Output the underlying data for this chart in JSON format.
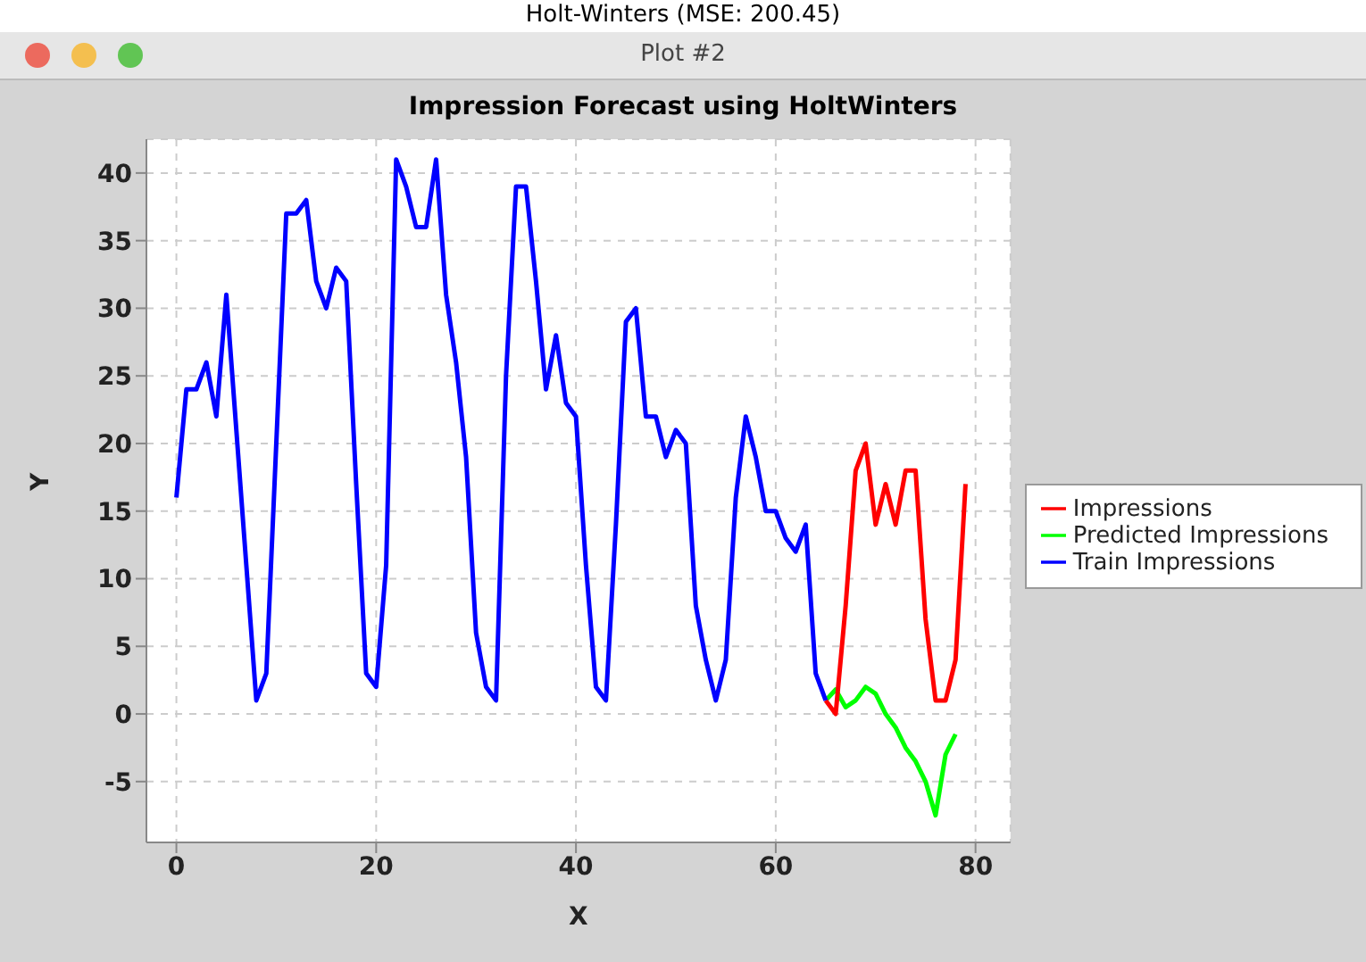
{
  "chart_data": {
    "type": "line",
    "title": "Impression Forecast using HoltWinters",
    "xlabel": "X",
    "ylabel": "Y",
    "annotations": [
      "Holt-Winters (MSE: 200.45)",
      "Plot #2"
    ],
    "xlim": [
      -3,
      83.5
    ],
    "xticks": [
      0,
      20,
      40,
      60,
      80
    ],
    "ylim": [
      -9.5,
      42.5
    ],
    "yticks": [
      -5,
      0,
      5,
      10,
      15,
      20,
      25,
      30,
      35,
      40
    ],
    "grid": true,
    "legend": "right",
    "marker": "none",
    "line_style": "solid",
    "series": [
      {
        "name": "Predicted Impressions",
        "color": "#00ff00",
        "x": [
          65,
          66,
          67,
          68,
          69,
          70,
          71,
          72,
          73,
          74,
          75,
          76,
          77,
          78
        ],
        "values": [
          1,
          1.8,
          0.5,
          1,
          2,
          1.5,
          0,
          -1,
          -2.5,
          -3.5,
          -5,
          -7.5,
          -3,
          -1.5
        ]
      },
      {
        "name": "Impressions",
        "color": "#ff0000",
        "x": [
          65,
          66,
          67,
          68,
          69,
          70,
          71,
          72,
          73,
          74,
          75,
          76,
          77,
          78,
          79
        ],
        "values": [
          1,
          0,
          8,
          18,
          20,
          14,
          17,
          14,
          18,
          18,
          7,
          1,
          1,
          4,
          17
        ]
      },
      {
        "name": "Train Impressions",
        "color": "#0000ff",
        "x": [
          0,
          1,
          2,
          3,
          4,
          5,
          6,
          7,
          8,
          9,
          10,
          11,
          12,
          13,
          14,
          15,
          16,
          17,
          18,
          19,
          20,
          21,
          22,
          23,
          24,
          25,
          26,
          27,
          28,
          29,
          30,
          31,
          32,
          33,
          34,
          35,
          36,
          37,
          38,
          39,
          40,
          41,
          42,
          43,
          44,
          45,
          46,
          47,
          48,
          49,
          50,
          51,
          52,
          53,
          54,
          55,
          56,
          57,
          58,
          59,
          60,
          61,
          62,
          63,
          64,
          65
        ],
        "values": [
          16,
          24,
          24,
          26,
          22,
          31,
          21,
          11,
          1,
          3,
          20,
          37,
          37,
          38,
          32,
          30,
          33,
          32,
          17,
          3,
          2,
          11,
          41,
          39,
          36,
          36,
          41,
          31,
          26,
          19,
          6,
          2,
          1,
          25,
          39,
          39,
          32,
          24,
          28,
          23,
          22,
          11,
          2,
          1,
          14,
          29,
          30,
          22,
          22,
          19,
          21,
          20,
          8,
          4,
          1,
          4,
          16,
          22,
          19,
          15,
          15,
          13,
          12,
          14,
          3,
          1
        ]
      }
    ]
  }
}
